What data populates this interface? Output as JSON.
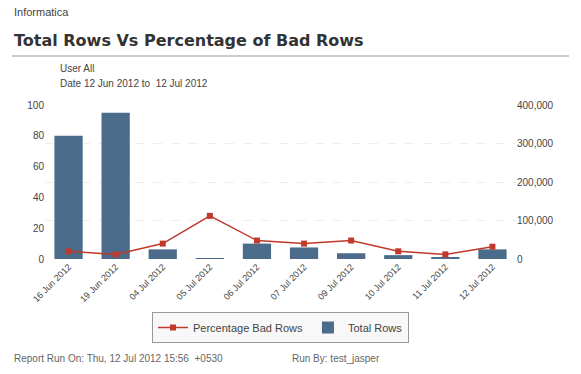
{
  "chart_data": {
    "type": "bar",
    "title": "Total Rows Vs Percentage of Bad Rows",
    "annotations": [
      "Informatica",
      "User All",
      "Date 12 Jun 2012 to  12 Jul 2012",
      "Report Run On: Thu, 12 Jul 2012 15:56  +0530",
      "Run By: test_jasper"
    ],
    "categories": [
      "16 Jun 2012",
      "19 Jun 2012",
      "04 Jul 2012",
      "05 Jul 2012",
      "06 Jul 2012",
      "07 Jul 2012",
      "09 Jul 2012",
      "10 Jul 2012",
      "11 Jul 2012",
      "12 Jul 2012"
    ],
    "series": [
      {
        "name": "Total Rows",
        "type": "bar",
        "color": "#4a6b8a",
        "axis": "y2",
        "values": [
          320000,
          380000,
          25000,
          2000,
          40000,
          30000,
          15000,
          10000,
          5000,
          25000
        ]
      },
      {
        "name": "Percentage Bad Rows",
        "type": "line",
        "color": "#c0392b",
        "marker": "square",
        "line_style": "solid",
        "values": [
          5,
          3,
          10,
          28,
          12,
          10,
          12,
          5,
          3,
          8
        ]
      }
    ],
    "ylim": [
      0,
      100
    ],
    "yticks": [
      0,
      20,
      40,
      60,
      80,
      100
    ],
    "y2lim": [
      0,
      400000
    ],
    "y2ticks": [
      0,
      {
        "value": 100000,
        "label": "100,000"
      },
      {
        "value": 200000,
        "label": "200,000"
      },
      {
        "value": 300000,
        "label": "300,000"
      },
      {
        "value": 400000,
        "label": "400,000"
      }
    ],
    "grid": true,
    "legend": "bottom"
  }
}
